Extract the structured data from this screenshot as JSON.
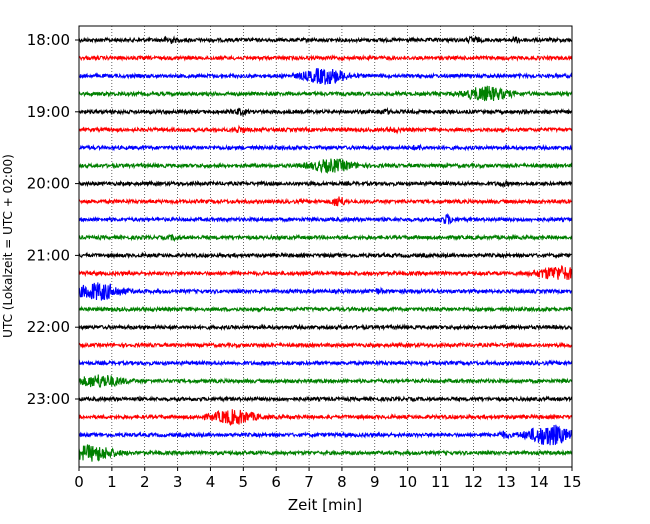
{
  "chart_data": {
    "type": "line",
    "title": "",
    "xlabel": "Zeit  [min]",
    "ylabel": "UTC (Lokalzeit = UTC + 02:00)",
    "xlim": [
      0,
      15
    ],
    "x_ticks": [
      0,
      1,
      2,
      3,
      4,
      5,
      6,
      7,
      8,
      9,
      10,
      11,
      12,
      13,
      14,
      15
    ],
    "x_tick_labels": [
      "0",
      "1",
      "2",
      "3",
      "4",
      "5",
      "6",
      "7",
      "8",
      "9",
      "10",
      "11",
      "12",
      "13",
      "14",
      "15"
    ],
    "y_tick_labels": [
      "18:00",
      "19:00",
      "20:00",
      "21:00",
      "22:00",
      "23:00"
    ],
    "start_time": "18:00",
    "trace_interval_minutes": 15,
    "trace_count": 24,
    "x_grid": "dotted vertical lines at each minute",
    "color_cycle": [
      "#000000",
      "#ff0000",
      "#0000ff",
      "#008000"
    ],
    "traces": [
      {
        "start": "18:00",
        "color": "#000000",
        "events": [
          {
            "minute": 2.75,
            "amplitude": 0.3
          },
          {
            "minute": 12.0,
            "amplitude": 0.3
          },
          {
            "minute": 13.3,
            "amplitude": 0.2
          }
        ]
      },
      {
        "start": "18:15",
        "color": "#ff0000",
        "events": []
      },
      {
        "start": "18:30",
        "color": "#0000ff",
        "events": [
          {
            "minute": 7.5,
            "amplitude": 0.9
          }
        ]
      },
      {
        "start": "18:45",
        "color": "#008000",
        "events": [
          {
            "minute": 12.4,
            "amplitude": 0.8
          }
        ]
      },
      {
        "start": "19:00",
        "color": "#000000",
        "events": [
          {
            "minute": 4.9,
            "amplitude": 0.3
          },
          {
            "minute": 9.3,
            "amplitude": 0.2
          }
        ]
      },
      {
        "start": "19:15",
        "color": "#ff0000",
        "events": [
          {
            "minute": 4.9,
            "amplitude": 0.3
          },
          {
            "minute": 9.6,
            "amplitude": 0.2
          }
        ]
      },
      {
        "start": "19:30",
        "color": "#0000ff",
        "events": [
          {
            "minute": 10.3,
            "amplitude": 0.2
          }
        ]
      },
      {
        "start": "19:45",
        "color": "#008000",
        "events": [
          {
            "minute": 7.7,
            "amplitude": 0.7
          }
        ]
      },
      {
        "start": "20:00",
        "color": "#000000",
        "events": [
          {
            "minute": 12.9,
            "amplitude": 0.2
          }
        ]
      },
      {
        "start": "20:15",
        "color": "#ff0000",
        "events": [
          {
            "minute": 7.9,
            "amplitude": 0.6
          }
        ]
      },
      {
        "start": "20:30",
        "color": "#0000ff",
        "events": [
          {
            "minute": 11.2,
            "amplitude": 0.5
          }
        ]
      },
      {
        "start": "20:45",
        "color": "#008000",
        "events": [
          {
            "minute": 2.9,
            "amplitude": 0.2
          }
        ]
      },
      {
        "start": "21:00",
        "color": "#000000",
        "events": []
      },
      {
        "start": "21:15",
        "color": "#ff0000",
        "events": [
          {
            "minute": 14.6,
            "amplitude": 0.8
          }
        ]
      },
      {
        "start": "21:30",
        "color": "#0000ff",
        "events": [
          {
            "minute": 0.6,
            "amplitude": 1.0
          },
          {
            "minute": 9.1,
            "amplitude": 0.2
          }
        ]
      },
      {
        "start": "21:45",
        "color": "#008000",
        "events": []
      },
      {
        "start": "22:00",
        "color": "#000000",
        "events": []
      },
      {
        "start": "22:15",
        "color": "#ff0000",
        "events": []
      },
      {
        "start": "22:30",
        "color": "#0000ff",
        "events": []
      },
      {
        "start": "22:45",
        "color": "#008000",
        "events": [
          {
            "minute": 0.65,
            "amplitude": 0.7
          }
        ]
      },
      {
        "start": "23:00",
        "color": "#000000",
        "events": []
      },
      {
        "start": "23:15",
        "color": "#ff0000",
        "events": [
          {
            "minute": 4.7,
            "amplitude": 0.8
          }
        ]
      },
      {
        "start": "23:30",
        "color": "#0000ff",
        "events": [
          {
            "minute": 14.3,
            "amplitude": 1.2
          },
          {
            "minute": 12.9,
            "amplitude": 0.3
          }
        ]
      },
      {
        "start": "23:45",
        "color": "#008000",
        "events": [
          {
            "minute": 0.4,
            "amplitude": 0.9
          }
        ]
      }
    ]
  }
}
